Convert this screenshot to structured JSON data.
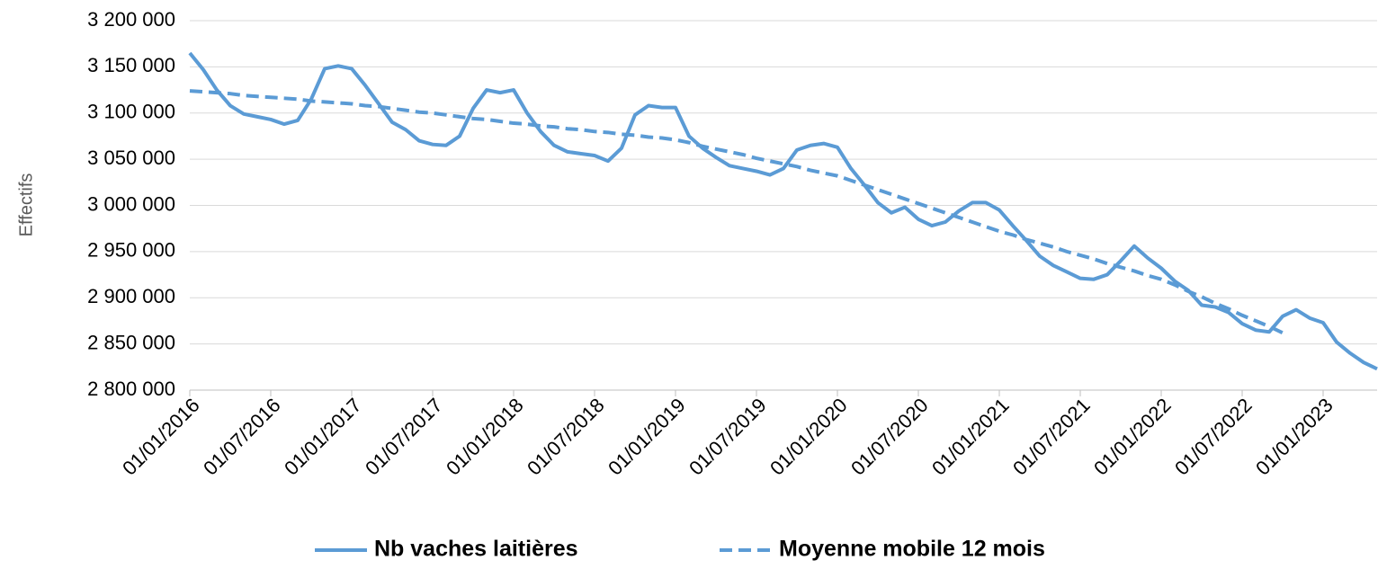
{
  "chart_data": {
    "type": "line",
    "y_label": "Effectifs",
    "x": [
      "01/01/2016",
      "01/02/2016",
      "01/03/2016",
      "01/04/2016",
      "01/05/2016",
      "01/06/2016",
      "01/07/2016",
      "01/08/2016",
      "01/09/2016",
      "01/10/2016",
      "01/11/2016",
      "01/12/2016",
      "01/01/2017",
      "01/02/2017",
      "01/03/2017",
      "01/04/2017",
      "01/05/2017",
      "01/06/2017",
      "01/07/2017",
      "01/08/2017",
      "01/09/2017",
      "01/10/2017",
      "01/11/2017",
      "01/12/2017",
      "01/01/2018",
      "01/02/2018",
      "01/03/2018",
      "01/04/2018",
      "01/05/2018",
      "01/06/2018",
      "01/07/2018",
      "01/08/2018",
      "01/09/2018",
      "01/10/2018",
      "01/11/2018",
      "01/12/2018",
      "01/01/2019",
      "01/02/2019",
      "01/03/2019",
      "01/04/2019",
      "01/05/2019",
      "01/06/2019",
      "01/07/2019",
      "01/08/2019",
      "01/09/2019",
      "01/10/2019",
      "01/11/2019",
      "01/12/2019",
      "01/01/2020",
      "01/02/2020",
      "01/03/2020",
      "01/04/2020",
      "01/05/2020",
      "01/06/2020",
      "01/07/2020",
      "01/08/2020",
      "01/09/2020",
      "01/10/2020",
      "01/11/2020",
      "01/12/2020",
      "01/01/2021",
      "01/02/2021",
      "01/03/2021",
      "01/04/2021",
      "01/05/2021",
      "01/06/2021",
      "01/07/2021",
      "01/08/2021",
      "01/09/2021",
      "01/10/2021",
      "01/11/2021",
      "01/12/2021",
      "01/01/2022",
      "01/02/2022",
      "01/03/2022",
      "01/04/2022",
      "01/05/2022",
      "01/06/2022",
      "01/07/2022",
      "01/08/2022",
      "01/09/2022",
      "01/10/2022",
      "01/11/2022",
      "01/12/2022",
      "01/01/2023",
      "01/02/2023",
      "01/03/2023",
      "01/04/2023",
      "01/05/2023"
    ],
    "xticks": [
      "01/01/2016",
      "01/07/2016",
      "01/01/2017",
      "01/07/2017",
      "01/01/2018",
      "01/07/2018",
      "01/01/2019",
      "01/07/2019",
      "01/01/2020",
      "01/07/2020",
      "01/01/2021",
      "01/07/2021",
      "01/01/2022",
      "01/07/2022",
      "01/01/2023"
    ],
    "ylim": [
      2800000,
      3200000
    ],
    "yticks": [
      {
        "value": 2800000,
        "label": "2 800 000"
      },
      {
        "value": 2850000,
        "label": "2 850 000"
      },
      {
        "value": 2900000,
        "label": "2 900 000"
      },
      {
        "value": 2950000,
        "label": "2 950 000"
      },
      {
        "value": 3000000,
        "label": "3 000 000"
      },
      {
        "value": 3050000,
        "label": "3 050 000"
      },
      {
        "value": 3100000,
        "label": "3 100 000"
      },
      {
        "value": 3150000,
        "label": "3 150 000"
      },
      {
        "value": 3200000,
        "label": "3 200 000"
      }
    ],
    "grid": true,
    "legend": "bottom",
    "series": [
      {
        "name": "Nb vaches laitières",
        "color": "#5b9bd5",
        "dash": "solid",
        "values": [
          3165000,
          3147000,
          3125000,
          3108000,
          3099000,
          3096000,
          3093000,
          3088000,
          3092000,
          3115000,
          3148000,
          3151000,
          3148000,
          3130000,
          3110000,
          3090000,
          3082000,
          3070000,
          3066000,
          3065000,
          3075000,
          3105000,
          3125000,
          3122000,
          3125000,
          3100000,
          3080000,
          3065000,
          3058000,
          3056000,
          3054000,
          3048000,
          3062000,
          3098000,
          3108000,
          3106000,
          3106000,
          3075000,
          3062000,
          3052000,
          3043000,
          3040000,
          3037000,
          3033000,
          3040000,
          3060000,
          3065000,
          3067000,
          3063000,
          3040000,
          3022000,
          3003000,
          2992000,
          2998000,
          2985000,
          2978000,
          2982000,
          2994000,
          3003000,
          3003000,
          2995000,
          2978000,
          2962000,
          2945000,
          2935000,
          2928000,
          2921000,
          2920000,
          2925000,
          2940000,
          2956000,
          2943000,
          2932000,
          2918000,
          2908000,
          2892000,
          2890000,
          2884000,
          2872000,
          2865000,
          2863000,
          2880000,
          2887000,
          2878000,
          2873000,
          2852000,
          2840000,
          2830000,
          2823000
        ]
      },
      {
        "name": "Moyenne mobile 12 mois",
        "color": "#5b9bd5",
        "dash": "dashed",
        "values": [
          3124000,
          3123000,
          3122000,
          3121000,
          3119000,
          3118000,
          3117000,
          3116000,
          3115000,
          3113000,
          3112000,
          3111000,
          3110000,
          3108000,
          3107000,
          3105000,
          3103000,
          3101000,
          3100000,
          3098000,
          3096000,
          3094000,
          3093000,
          3091000,
          3089000,
          3088000,
          3086000,
          3085000,
          3083000,
          3082000,
          3080000,
          3079000,
          3077000,
          3076000,
          3074000,
          3073000,
          3071000,
          3068000,
          3064000,
          3061000,
          3058000,
          3055000,
          3051000,
          3048000,
          3045000,
          3042000,
          3038000,
          3035000,
          3032000,
          3027000,
          3022000,
          3017000,
          3012000,
          3007000,
          3002000,
          2997000,
          2992000,
          2987000,
          2982000,
          2977000,
          2972000,
          2968000,
          2963000,
          2959000,
          2955000,
          2950000,
          2946000,
          2942000,
          2937000,
          2933000,
          2929000,
          2924000,
          2920000,
          2914000,
          2907000,
          2901000,
          2894000,
          2888000,
          2881000,
          2875000,
          2869000,
          2862000,
          null,
          null,
          null,
          null,
          null,
          null,
          null
        ]
      }
    ]
  }
}
